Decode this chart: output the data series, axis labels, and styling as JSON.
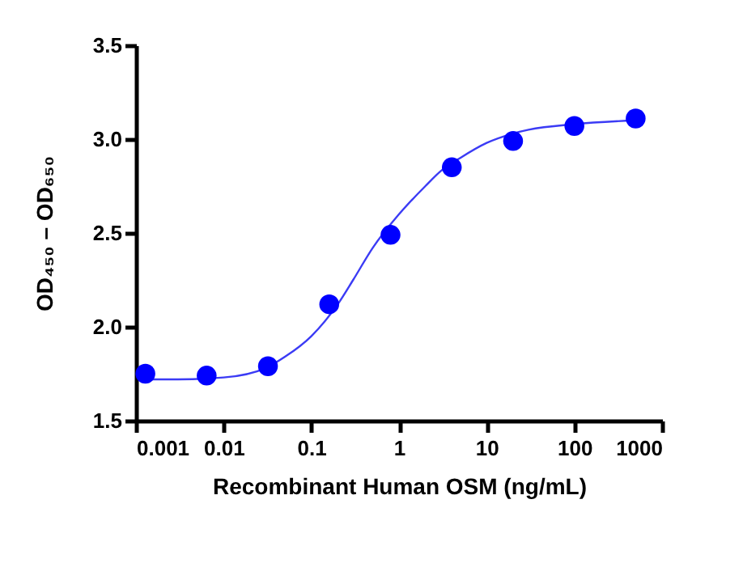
{
  "chart_data": {
    "type": "scatter",
    "xlabel": "Recombinant Human OSM (ng/mL)",
    "ylabel": "OD₄₅₀ – OD₆₅₀",
    "log": "x",
    "grid": false,
    "marker": "circle",
    "xlim": [
      0.001,
      1000
    ],
    "xticks": [
      0.001,
      0.01,
      0.1,
      1,
      10,
      100,
      1000
    ],
    "ylim": [
      1.5,
      3.5
    ],
    "yticks": [
      1.5,
      {
        "value": 2,
        "label": "2.0"
      },
      2.5,
      {
        "value": 3,
        "label": "3.0"
      },
      3.5
    ],
    "series": [
      {
        "color": "#0000ff",
        "x": [
          0.00128,
          0.0064,
          0.032,
          0.16,
          0.8,
          4,
          20,
          100,
          500
        ],
        "values": [
          1.75,
          1.74,
          1.79,
          2.12,
          2.49,
          2.85,
          2.99,
          3.07,
          3.11
        ]
      },
      {
        "type": "line",
        "color": "#3b3bf5",
        "line_style": "solid",
        "marker": "none",
        "x": [
          0.00128,
          0.003,
          0.01,
          0.03,
          0.05,
          0.1,
          0.2,
          0.3,
          0.5,
          1,
          2,
          3,
          5,
          10,
          20,
          30,
          100,
          500
        ],
        "values": [
          1.72,
          1.72,
          1.73,
          1.78,
          1.84,
          1.95,
          2.12,
          2.25,
          2.42,
          2.6,
          2.75,
          2.83,
          2.9,
          2.98,
          3.03,
          3.05,
          3.08,
          3.1
        ]
      }
    ]
  }
}
